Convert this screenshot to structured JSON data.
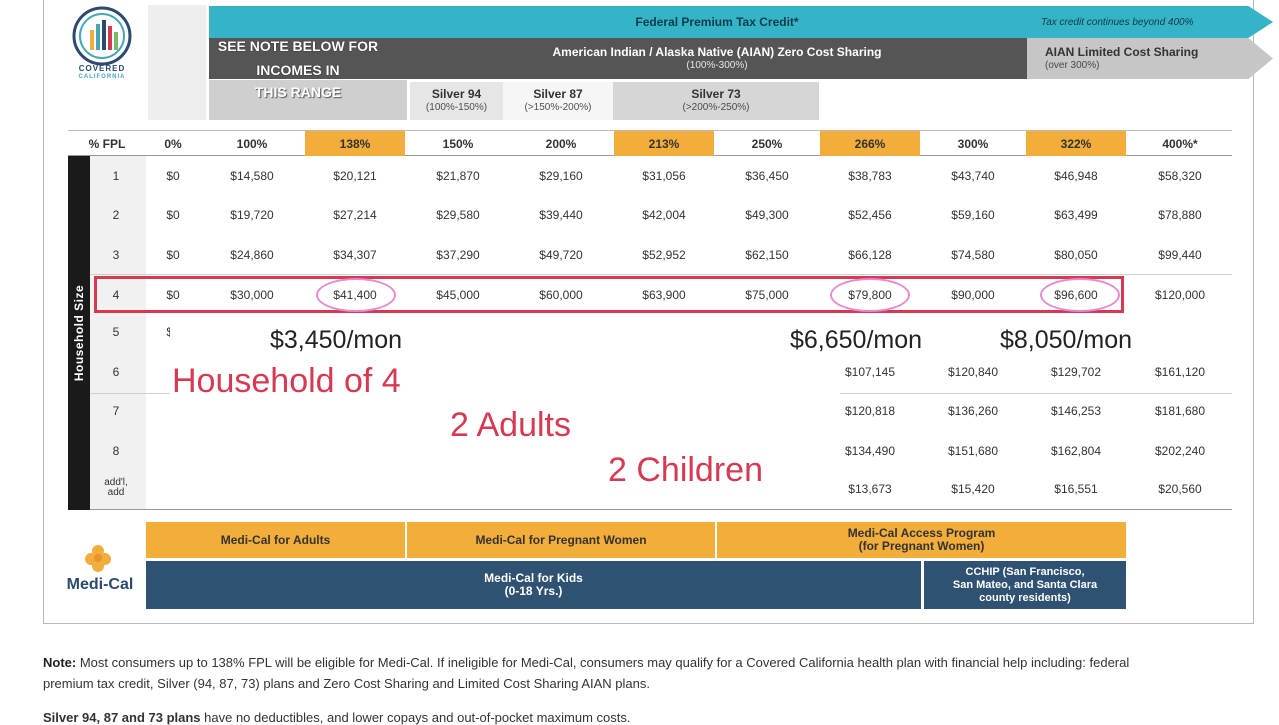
{
  "logo": {
    "name": "COVERED",
    "sub": "CALIFORNIA"
  },
  "header": {
    "federal_credit": "Federal Premium Tax Credit*",
    "credit_beyond": "Tax credit continues beyond 400%",
    "see_note": "SEE NOTE BELOW FOR INCOMES IN",
    "this_range": "THIS RANGE",
    "aian_zero": "American Indian / Alaska Native (AIAN) Zero Cost Sharing",
    "aian_zero_range": "(100%-300%)",
    "aian_limited": "AIAN Limited Cost Sharing",
    "aian_limited_range": "(over 300%)",
    "silver94": "Silver 94",
    "silver94_range": "(100%-150%)",
    "silver87": "Silver 87",
    "silver87_range": "(>150%-200%)",
    "silver73": "Silver 73",
    "silver73_range": "(>200%-250%)"
  },
  "table": {
    "fpl_label": "% FPL",
    "household_label": "Household Size",
    "columns": [
      "0%",
      "100%",
      "138%",
      "150%",
      "200%",
      "213%",
      "250%",
      "266%",
      "300%",
      "322%",
      "400%*"
    ],
    "rows": [
      {
        "size": "1",
        "values": [
          "$0",
          "$14,580",
          "$20,121",
          "$21,870",
          "$29,160",
          "$31,056",
          "$36,450",
          "$38,783",
          "$43,740",
          "$46,948",
          "$58,320"
        ]
      },
      {
        "size": "2",
        "values": [
          "$0",
          "$19,720",
          "$27,214",
          "$29,580",
          "$39,440",
          "$42,004",
          "$49,300",
          "$52,456",
          "$59,160",
          "$63,499",
          "$78,880"
        ]
      },
      {
        "size": "3",
        "values": [
          "$0",
          "$24,860",
          "$34,307",
          "$37,290",
          "$49,720",
          "$52,952",
          "$62,150",
          "$66,128",
          "$74,580",
          "$80,050",
          "$99,440"
        ]
      },
      {
        "size": "4",
        "values": [
          "$0",
          "$30,000",
          "$41,400",
          "$45,000",
          "$60,000",
          "$63,900",
          "$75,000",
          "$79,800",
          "$90,000",
          "$96,600",
          "$120,000"
        ]
      },
      {
        "size": "5",
        "values": [
          "$0",
          "",
          "",
          "",
          "",
          "",
          "",
          "",
          "",
          "",
          ""
        ]
      },
      {
        "size": "6",
        "values": [
          "",
          "",
          "",
          "",
          "",
          "",
          "",
          "$107,145",
          "$120,840",
          "$129,702",
          "$161,120"
        ]
      },
      {
        "size": "7",
        "values": [
          "",
          "",
          "",
          "",
          "",
          "",
          "",
          "$120,818",
          "$136,260",
          "$146,253",
          "$181,680"
        ]
      },
      {
        "size": "8",
        "values": [
          "",
          "",
          "",
          "",
          "",
          "",
          "",
          "$134,490",
          "$151,680",
          "$162,804",
          "$202,240"
        ]
      },
      {
        "size": "add'l, add",
        "values": [
          "",
          "",
          "",
          "",
          "",
          "",
          "",
          "$13,673",
          "$15,420",
          "$16,551",
          "$20,560"
        ]
      }
    ]
  },
  "annotations": {
    "mon1": "$3,450/mon",
    "mon2": "$6,650/mon",
    "mon3": "$8,050/mon",
    "household": "Household of 4",
    "adults": "2 Adults",
    "children": "2 Children"
  },
  "medical": {
    "logo": "Medi-Cal",
    "adults": "Medi-Cal for Adults",
    "pregnant": "Medi-Cal for Pregnant Women",
    "access": "Medi-Cal Access Program",
    "access_sub": "(for Pregnant Women)",
    "kids": "Medi-Cal for Kids",
    "kids_sub": "(0-18 Yrs.)",
    "cchip": "CCHIP (San Francisco,",
    "cchip_sub": "San Mateo, and Santa Clara",
    "cchip_sub2": "county residents)"
  },
  "notes": {
    "label": "Note:",
    "text": " Most consumers up to 138% FPL will be eligible for Medi-Cal. If ineligible for Medi-Cal, consumers may qualify for a Covered California health plan with financial help including: federal premium tax credit, Silver (94, 87, 73) plans and Zero Cost Sharing and Limited Cost Sharing AIAN plans.",
    "label2": "Silver 94, 87 and 73 plans",
    "text2": " have no deductibles, and lower copays and out-of-pocket maximum costs."
  },
  "colors": {
    "teal": "#35b3c7",
    "orange": "#f2ad3a",
    "navy": "#2f5272",
    "red": "#d63a52"
  }
}
